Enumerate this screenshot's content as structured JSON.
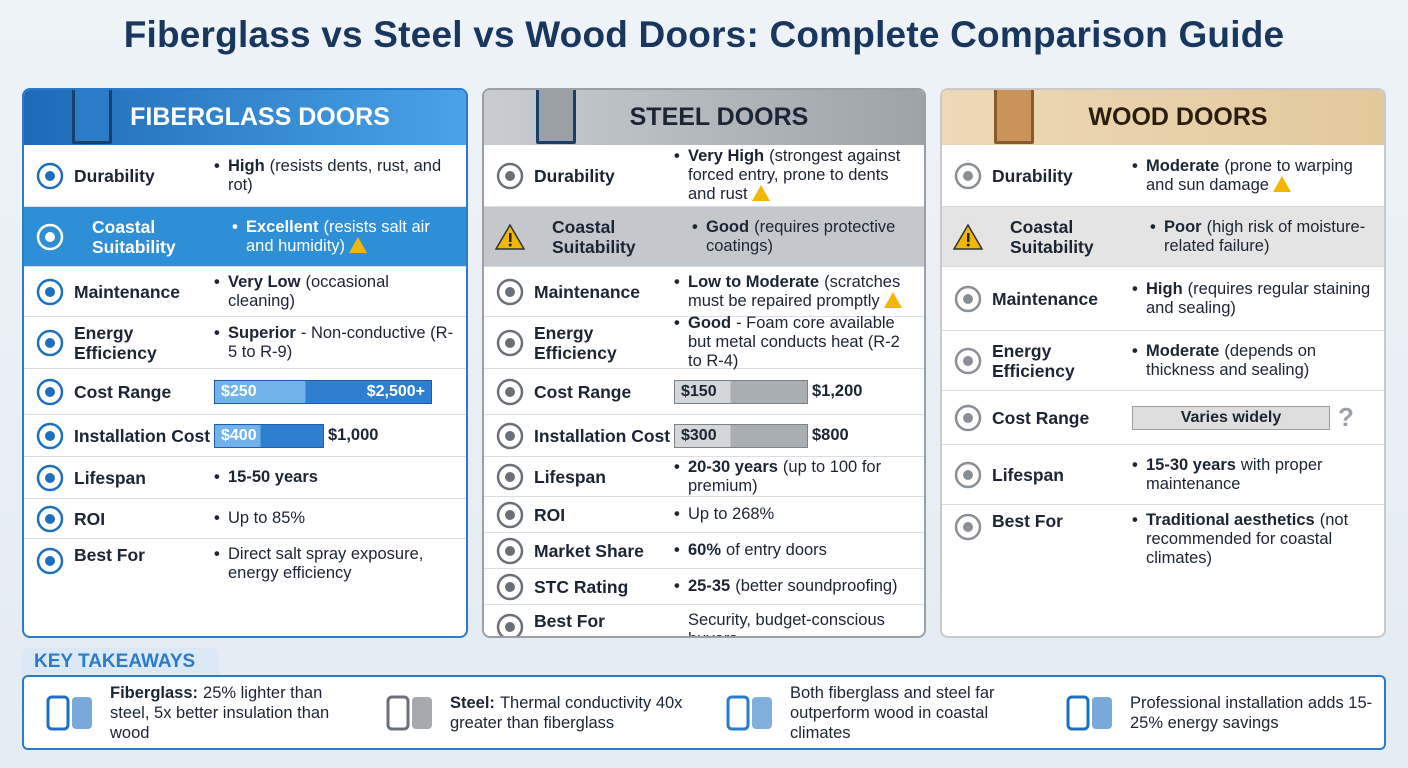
{
  "title": "Fiberglass vs Steel vs Wood Doors: Complete Comparison Guide",
  "columns": [
    {
      "name": "FIBERGLASS DOORS",
      "rows": [
        {
          "label": "Durability",
          "bold": "High",
          "text": "(resists dents, rust, and rot)"
        },
        {
          "label": "Coastal Suitability",
          "bold": "Excellent",
          "text": "(resists salt air and humidity)"
        },
        {
          "label": "Maintenance",
          "bold": "Very Low",
          "text": "(occasional cleaning)"
        },
        {
          "label": "Energy Efficiency",
          "bold": "Superior",
          "text": "- Non-conductive (R-5 to R-9)"
        },
        {
          "label": "Cost Range",
          "bar": {
            "low": "$250",
            "high": "$2,500+"
          }
        },
        {
          "label": "Installation Cost",
          "bar": {
            "low": "$400",
            "high": "$1,000"
          }
        },
        {
          "label": "Lifespan",
          "bold": "15-50 years"
        },
        {
          "label": "ROI",
          "text": "Up to 85%"
        },
        {
          "label": "Best For",
          "text": "Direct salt spray exposure, energy efficiency"
        }
      ]
    },
    {
      "name": "STEEL DOORS",
      "rows": [
        {
          "label": "Durability",
          "bold": "Very High",
          "text": "(strongest against forced entry, prone to dents and rust"
        },
        {
          "label": "Coastal Suitability",
          "bold": "Good",
          "text": "(requires protective coatings)"
        },
        {
          "label": "Maintenance",
          "bold": "Low to Moderate",
          "text": "(scratches must be repaired promptly"
        },
        {
          "label": "Energy Efficiency",
          "bold": "Good",
          "text": "- Foam core available but metal conducts heat (R-2 to R-4)"
        },
        {
          "label": "Cost Range",
          "bar": {
            "low": "$150",
            "high": "$1,200"
          }
        },
        {
          "label": "Installation Cost",
          "bar": {
            "low": "$300",
            "high": "$800"
          }
        },
        {
          "label": "Lifespan",
          "bold": "20-30 years",
          "text": "(up to 100 for premium)"
        },
        {
          "label": "ROI",
          "text": "Up to 268%"
        },
        {
          "label": "Market Share",
          "bold": "60%",
          "text": "of entry doors"
        },
        {
          "label": "STC Rating",
          "bold": "25-35",
          "text": "(better soundproofing)"
        },
        {
          "label": "Best For",
          "plain": "Security, budget-conscious buyers"
        }
      ]
    },
    {
      "name": "WOOD DOORS",
      "rows": [
        {
          "label": "Durability",
          "bold": "Moderate",
          "text": "(prone to warping and sun damage"
        },
        {
          "label": "Coastal Suitability",
          "bold": "Poor",
          "text": "(high risk of moisture-related failure)"
        },
        {
          "label": "Maintenance",
          "bold": "High",
          "text": "(requires regular staining and sealing)"
        },
        {
          "label": "Energy Efficiency",
          "bold": "Moderate",
          "text": "(depends on thickness and sealing)"
        },
        {
          "label": "Cost Range",
          "bar": {
            "note": "Varies widely",
            "mark": "?"
          }
        },
        {
          "label": "Lifespan",
          "bold": "15-30 years",
          "text": "with proper maintenance"
        },
        {
          "label": "Best For",
          "bold": "Traditional aesthetics",
          "text": "(not recommended for coastal climates)"
        }
      ]
    }
  ],
  "takeaways": {
    "title": "KEY TAKEAWAYS",
    "items": [
      {
        "bold": "Fiberglass:",
        "text": "25% lighter than steel, 5x better insulation than wood"
      },
      {
        "bold": "Steel:",
        "text": "Thermal conductivity 40x greater than fiberglass"
      },
      {
        "text": "Both fiberglass and steel far outperform wood in coastal climates"
      },
      {
        "text": "Professional installation adds 15-25% energy savings"
      }
    ]
  }
}
